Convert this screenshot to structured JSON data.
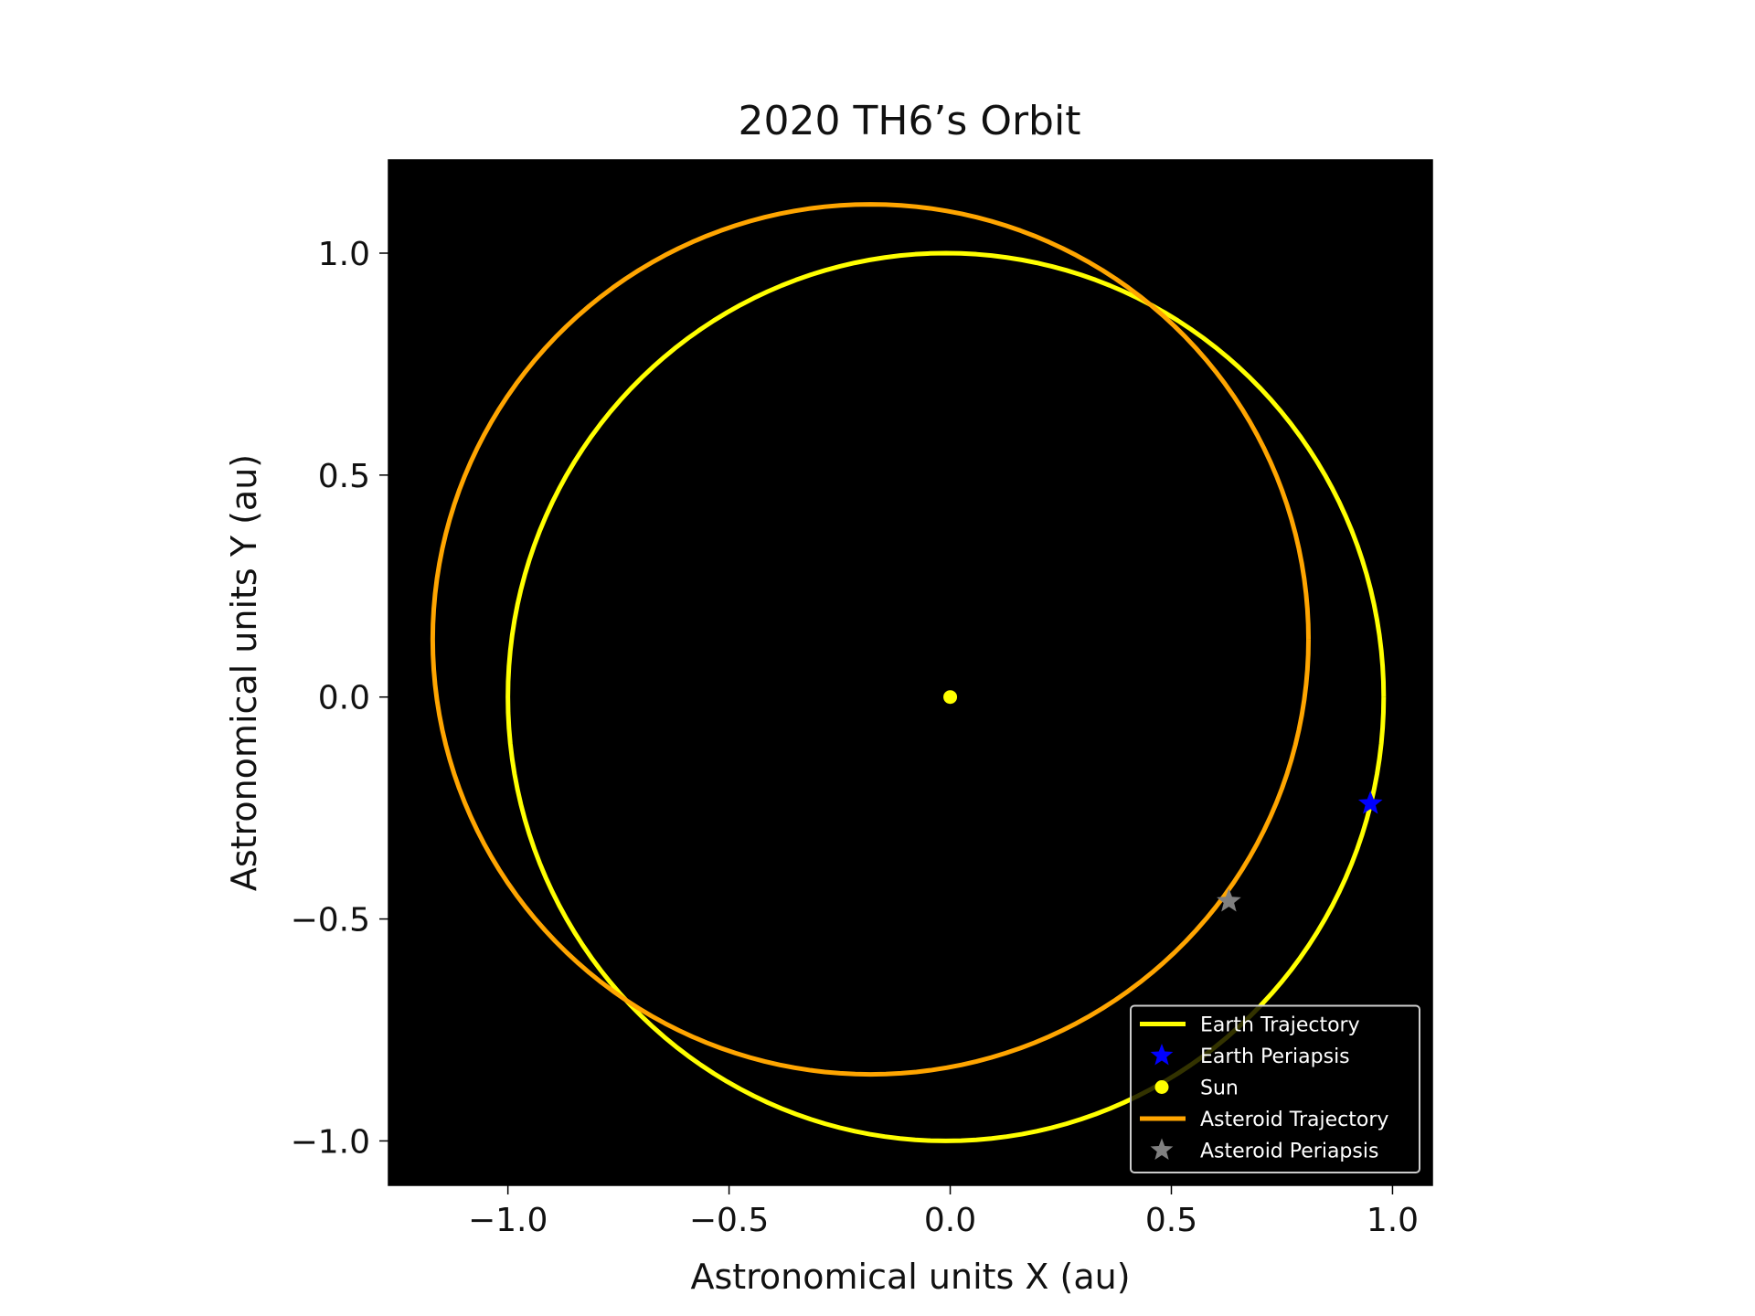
{
  "chart_data": {
    "type": "line",
    "title": "2020 TH6’s Orbit",
    "xlabel": "Astronomical units X (au)",
    "ylabel": "Astronomical units Y (au)",
    "xlim": [
      -1.27,
      1.09
    ],
    "ylim": [
      -1.1,
      1.21
    ],
    "xticks": [
      -1.0,
      -0.5,
      0.0,
      0.5,
      1.0
    ],
    "yticks": [
      -1.0,
      -0.5,
      0.0,
      0.5,
      1.0
    ],
    "xtick_labels": [
      "−1.0",
      "−0.5",
      "0.0",
      "0.5",
      "1.0"
    ],
    "ytick_labels": [
      "−1.0",
      "−0.5",
      "0.0",
      "0.5",
      "1.0"
    ],
    "grid": false,
    "legend_position": "bottom-right",
    "colors": {
      "plot_background": "#000000",
      "earth": "#ffff00",
      "asteroid": "#ffa500",
      "earth_periapsis": "#0000ff",
      "asteroid_periapsis": "#808080",
      "sun": "#ffff00"
    },
    "series": [
      {
        "name": "Earth Trajectory",
        "kind": "ellipse",
        "center": [
          -0.01,
          0.0
        ],
        "semi_axis_x": 0.99,
        "semi_axis_y": 1.0
      },
      {
        "name": "Asteroid Trajectory",
        "kind": "ellipse",
        "center": [
          -0.18,
          0.13
        ],
        "semi_axis_x": 0.99,
        "semi_axis_y": 0.98
      },
      {
        "name": "Earth Periapsis",
        "kind": "marker",
        "marker": "star",
        "x": 0.95,
        "y": -0.24
      },
      {
        "name": "Sun",
        "kind": "marker",
        "marker": "dot",
        "x": 0.0,
        "y": 0.0
      },
      {
        "name": "Asteroid Periapsis",
        "kind": "marker",
        "marker": "star",
        "x": 0.63,
        "y": -0.46
      }
    ],
    "legend": [
      {
        "label": "Earth Trajectory",
        "symbol": "line",
        "color": "#ffff00"
      },
      {
        "label": "Earth Periapsis",
        "symbol": "star",
        "color": "#0000ff"
      },
      {
        "label": "Sun",
        "symbol": "dot",
        "color": "#ffff00"
      },
      {
        "label": "Asteroid Trajectory",
        "symbol": "line",
        "color": "#ffa500"
      },
      {
        "label": "Asteroid Periapsis",
        "symbol": "star",
        "color": "#808080"
      }
    ]
  }
}
